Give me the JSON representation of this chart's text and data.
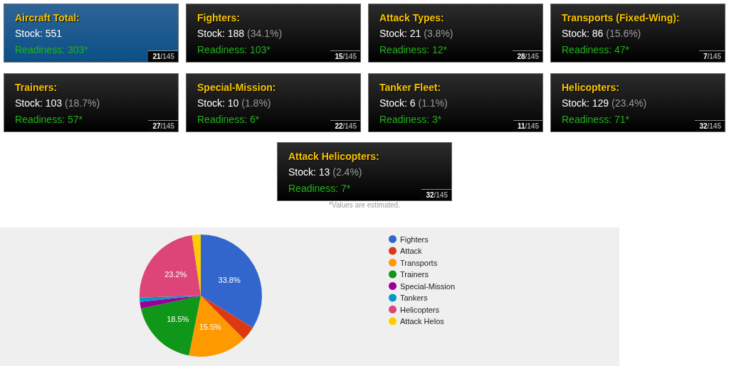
{
  "chart_data": [
    {
      "type": "other",
      "title": "Aircraft Total:",
      "subtitle": "Stock: 551",
      "annotations": [
        "Readiness: 303*",
        "21/145"
      ]
    },
    {
      "type": "other",
      "title": "Fighters:",
      "subtitle": "Stock: 188 (34.1%)",
      "annotations": [
        "Readiness: 103*",
        "15/145"
      ]
    },
    {
      "type": "other",
      "title": "Attack Types:",
      "subtitle": "Stock: 21 (3.8%)",
      "annotations": [
        "Readiness: 12*",
        "28/145"
      ]
    },
    {
      "type": "other",
      "title": "Transports (Fixed-Wing):",
      "subtitle": "Stock: 86 (15.6%)",
      "annotations": [
        "Readiness: 47*",
        "7/145"
      ]
    },
    {
      "type": "other",
      "title": "Trainers:",
      "subtitle": "Stock: 103 (18.7%)",
      "annotations": [
        "Readiness: 57*",
        "27/145"
      ]
    },
    {
      "type": "other",
      "title": "Special-Mission:",
      "subtitle": "Stock: 10 (1.8%)",
      "annotations": [
        "Readiness: 6*",
        "22/145"
      ]
    },
    {
      "type": "other",
      "title": "Tanker Fleet:",
      "subtitle": "Stock: 6 (1.1%)",
      "annotations": [
        "Readiness: 3*",
        "11/145"
      ]
    },
    {
      "type": "other",
      "title": "Helicopters:",
      "subtitle": "Stock: 129 (23.4%)",
      "annotations": [
        "Readiness: 71*",
        "32/145"
      ]
    },
    {
      "type": "other",
      "title": "Attack Helicopters:",
      "subtitle": "Stock: 13 (2.4%)",
      "annotations": [
        "Readiness: 7*",
        "32/145"
      ]
    },
    {
      "type": "other",
      "annotations": [
        "*Values are estimated."
      ]
    },
    {
      "type": "pie",
      "categories": [
        "Fighters",
        "Attack",
        "Transports",
        "Trainers",
        "Special-Mission",
        "Tankers",
        "Helicopters",
        "Attack Helos"
      ],
      "values": [
        33.8,
        3.8,
        15.5,
        18.5,
        1.8,
        1.1,
        23.2,
        2.3
      ],
      "colors": [
        "#3366cc",
        "#dc3912",
        "#ff9900",
        "#109618",
        "#990099",
        "#0099c6",
        "#dd4477",
        "#ffcc00"
      ],
      "value_labels": [
        "33.8%",
        null,
        "15.5%",
        "18.5%",
        null,
        null,
        "23.2%",
        null
      ],
      "legend": "right"
    }
  ]
}
